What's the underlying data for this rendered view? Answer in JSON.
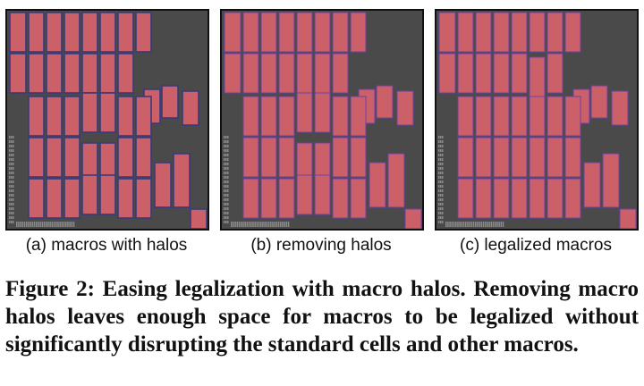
{
  "panels": [
    {
      "id": "a",
      "caption": "(a) macros with halos",
      "state": "halos"
    },
    {
      "id": "b",
      "caption": "(b) removing halos",
      "state": "no-halos"
    },
    {
      "id": "c",
      "caption": "(c) legalized macros",
      "state": "legalized"
    }
  ],
  "caption": {
    "label": "Figure 2:",
    "text": "Easing legalization with macro halos. Removing macro halos leaves enough space for macros to be legalized without significantly disrupting the standard cells and other macros."
  },
  "colors": {
    "background": "#4a4a4a",
    "macro_fill": "#cc6068",
    "macro_border": "#6b3fa8",
    "halo_border": "#3a3a7a",
    "std_cell": "#8a8a8a"
  }
}
